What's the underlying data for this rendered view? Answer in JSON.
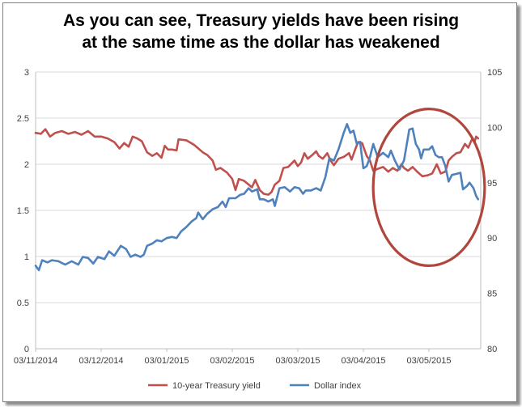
{
  "chart_data": {
    "type": "line",
    "title_lines": [
      "As you can see, Treasury yields have been rising",
      "at the same time as the dollar has weakened"
    ],
    "x_tick_labels": [
      "03/11/2014",
      "03/12/2014",
      "03/01/2015",
      "03/02/2015",
      "03/03/2015",
      "03/04/2015",
      "03/05/2015"
    ],
    "x_range": [
      0,
      6.75
    ],
    "left_axis": {
      "ylim": [
        0,
        3
      ],
      "ticks": [
        "0",
        "0.5",
        "1",
        "1.5",
        "2",
        "2.5",
        "3"
      ]
    },
    "right_axis": {
      "ylim": [
        80,
        105
      ],
      "ticks": [
        "80",
        "85",
        "90",
        "95",
        "100",
        "105"
      ]
    },
    "grid": true,
    "legend_position": "bottom",
    "series": [
      {
        "name": "10-year Treasury yield",
        "axis": "left",
        "color": "#c0504d",
        "points": [
          [
            0.0,
            2.34
          ],
          [
            0.08,
            2.33
          ],
          [
            0.15,
            2.38
          ],
          [
            0.22,
            2.3
          ],
          [
            0.3,
            2.34
          ],
          [
            0.4,
            2.36
          ],
          [
            0.5,
            2.33
          ],
          [
            0.6,
            2.35
          ],
          [
            0.7,
            2.32
          ],
          [
            0.8,
            2.36
          ],
          [
            0.9,
            2.3
          ],
          [
            1.0,
            2.3
          ],
          [
            1.1,
            2.28
          ],
          [
            1.2,
            2.24
          ],
          [
            1.28,
            2.17
          ],
          [
            1.35,
            2.23
          ],
          [
            1.42,
            2.19
          ],
          [
            1.48,
            2.3
          ],
          [
            1.55,
            2.28
          ],
          [
            1.62,
            2.25
          ],
          [
            1.7,
            2.13
          ],
          [
            1.78,
            2.09
          ],
          [
            1.85,
            2.12
          ],
          [
            1.92,
            2.07
          ],
          [
            1.97,
            2.2
          ],
          [
            2.02,
            2.16
          ],
          [
            2.08,
            2.16
          ],
          [
            2.15,
            2.15
          ],
          [
            2.18,
            2.27
          ],
          [
            2.3,
            2.26
          ],
          [
            2.42,
            2.21
          ],
          [
            2.55,
            2.13
          ],
          [
            2.62,
            2.1
          ],
          [
            2.7,
            2.04
          ],
          [
            2.75,
            1.94
          ],
          [
            2.82,
            1.96
          ],
          [
            2.92,
            1.91
          ],
          [
            3.0,
            1.84
          ],
          [
            3.05,
            1.72
          ],
          [
            3.1,
            1.84
          ],
          [
            3.18,
            1.82
          ],
          [
            3.25,
            1.78
          ],
          [
            3.3,
            1.75
          ],
          [
            3.35,
            1.83
          ],
          [
            3.42,
            1.72
          ],
          [
            3.48,
            1.68
          ],
          [
            3.55,
            1.67
          ],
          [
            3.6,
            1.7
          ],
          [
            3.65,
            1.78
          ],
          [
            3.72,
            1.82
          ],
          [
            3.78,
            1.96
          ],
          [
            3.85,
            1.97
          ],
          [
            3.95,
            2.04
          ],
          [
            4.0,
            1.98
          ],
          [
            4.05,
            2.02
          ],
          [
            4.1,
            2.12
          ],
          [
            4.15,
            2.06
          ],
          [
            4.22,
            2.1
          ],
          [
            4.28,
            2.14
          ],
          [
            4.32,
            2.09
          ],
          [
            4.38,
            2.06
          ],
          [
            4.45,
            2.12
          ],
          [
            4.5,
            2.04
          ],
          [
            4.55,
            1.99
          ],
          [
            4.62,
            2.06
          ],
          [
            4.7,
            2.08
          ],
          [
            4.78,
            2.12
          ],
          [
            4.82,
            2.05
          ],
          [
            4.88,
            2.17
          ],
          [
            4.92,
            2.24
          ],
          [
            4.98,
            2.23
          ],
          [
            5.05,
            2.09
          ],
          [
            5.1,
            2.04
          ],
          [
            5.15,
            1.93
          ],
          [
            5.22,
            1.95
          ],
          [
            5.3,
            1.97
          ],
          [
            5.38,
            1.92
          ],
          [
            5.45,
            1.96
          ],
          [
            5.52,
            1.93
          ],
          [
            5.58,
            2.0
          ],
          [
            5.62,
            1.96
          ],
          [
            5.68,
            1.93
          ],
          [
            5.75,
            1.97
          ],
          [
            5.82,
            1.92
          ],
          [
            5.9,
            1.87
          ],
          [
            5.98,
            1.88
          ],
          [
            6.05,
            1.9
          ],
          [
            6.12,
            2.0
          ],
          [
            6.18,
            1.9
          ],
          [
            6.25,
            1.92
          ],
          [
            6.3,
            2.04
          ],
          [
            6.35,
            2.08
          ],
          [
            6.42,
            2.12
          ],
          [
            6.48,
            2.13
          ],
          [
            6.55,
            2.22
          ],
          [
            6.6,
            2.18
          ],
          [
            6.66,
            2.28
          ],
          [
            6.7,
            2.25
          ],
          [
            6.72,
            2.3
          ],
          [
            6.75,
            2.28
          ]
        ]
      },
      {
        "name": "Dollar index",
        "axis": "right",
        "color": "#4f81bd",
        "points": [
          [
            0.0,
            87.5
          ],
          [
            0.05,
            87.1
          ],
          [
            0.1,
            88.0
          ],
          [
            0.18,
            87.8
          ],
          [
            0.25,
            88.0
          ],
          [
            0.35,
            87.9
          ],
          [
            0.45,
            87.6
          ],
          [
            0.55,
            87.9
          ],
          [
            0.65,
            87.6
          ],
          [
            0.72,
            88.3
          ],
          [
            0.8,
            88.2
          ],
          [
            0.88,
            87.7
          ],
          [
            0.95,
            88.3
          ],
          [
            1.05,
            88.1
          ],
          [
            1.12,
            88.8
          ],
          [
            1.2,
            88.4
          ],
          [
            1.3,
            89.3
          ],
          [
            1.38,
            89.0
          ],
          [
            1.45,
            88.3
          ],
          [
            1.52,
            88.5
          ],
          [
            1.6,
            88.3
          ],
          [
            1.65,
            88.5
          ],
          [
            1.7,
            89.3
          ],
          [
            1.78,
            89.5
          ],
          [
            1.85,
            89.8
          ],
          [
            1.92,
            89.7
          ],
          [
            2.0,
            90.0
          ],
          [
            2.08,
            90.1
          ],
          [
            2.15,
            90.0
          ],
          [
            2.22,
            90.6
          ],
          [
            2.3,
            91.0
          ],
          [
            2.38,
            91.5
          ],
          [
            2.45,
            91.8
          ],
          [
            2.48,
            92.3
          ],
          [
            2.55,
            91.7
          ],
          [
            2.62,
            92.2
          ],
          [
            2.7,
            92.6
          ],
          [
            2.78,
            92.8
          ],
          [
            2.85,
            93.3
          ],
          [
            2.9,
            92.8
          ],
          [
            2.95,
            93.6
          ],
          [
            3.05,
            93.6
          ],
          [
            3.12,
            93.9
          ],
          [
            3.18,
            94.0
          ],
          [
            3.25,
            94.5
          ],
          [
            3.3,
            94.2
          ],
          [
            3.38,
            94.4
          ],
          [
            3.42,
            93.5
          ],
          [
            3.48,
            93.5
          ],
          [
            3.55,
            93.3
          ],
          [
            3.62,
            93.5
          ],
          [
            3.65,
            92.9
          ],
          [
            3.72,
            94.5
          ],
          [
            3.8,
            94.6
          ],
          [
            3.88,
            94.2
          ],
          [
            3.95,
            94.6
          ],
          [
            4.02,
            94.5
          ],
          [
            4.08,
            94.0
          ],
          [
            4.12,
            94.3
          ],
          [
            4.2,
            94.3
          ],
          [
            4.28,
            94.5
          ],
          [
            4.35,
            94.3
          ],
          [
            4.42,
            95.5
          ],
          [
            4.48,
            97.2
          ],
          [
            4.55,
            97.0
          ],
          [
            4.62,
            98.0
          ],
          [
            4.7,
            99.5
          ],
          [
            4.75,
            100.3
          ],
          [
            4.8,
            99.5
          ],
          [
            4.85,
            99.7
          ],
          [
            4.9,
            98.5
          ],
          [
            4.95,
            98.7
          ],
          [
            5.0,
            96.3
          ],
          [
            5.05,
            96.5
          ],
          [
            5.1,
            97.3
          ],
          [
            5.15,
            98.5
          ],
          [
            5.22,
            97.3
          ],
          [
            5.3,
            97.7
          ],
          [
            5.38,
            97.3
          ],
          [
            5.42,
            97.9
          ],
          [
            5.48,
            97.0
          ],
          [
            5.55,
            96.2
          ],
          [
            5.62,
            97.0
          ],
          [
            5.7,
            99.8
          ],
          [
            5.75,
            99.9
          ],
          [
            5.8,
            98.5
          ],
          [
            5.85,
            98.0
          ],
          [
            5.88,
            97.2
          ],
          [
            5.92,
            98.0
          ],
          [
            6.0,
            98.0
          ],
          [
            6.05,
            98.3
          ],
          [
            6.1,
            97.5
          ],
          [
            6.15,
            97.3
          ],
          [
            6.2,
            97.3
          ],
          [
            6.25,
            96.5
          ],
          [
            6.3,
            95.1
          ],
          [
            6.35,
            95.7
          ],
          [
            6.42,
            95.8
          ],
          [
            6.48,
            95.9
          ],
          [
            6.52,
            94.4
          ],
          [
            6.58,
            94.7
          ],
          [
            6.62,
            95.0
          ],
          [
            6.68,
            94.5
          ],
          [
            6.72,
            93.8
          ],
          [
            6.75,
            93.5
          ]
        ]
      }
    ],
    "annotation": {
      "shape": "ellipse",
      "color": "#b0463c",
      "x_center": 6.0,
      "y_center_left": 1.75,
      "x_radius": 0.85,
      "y_radius_left": 0.85
    }
  }
}
